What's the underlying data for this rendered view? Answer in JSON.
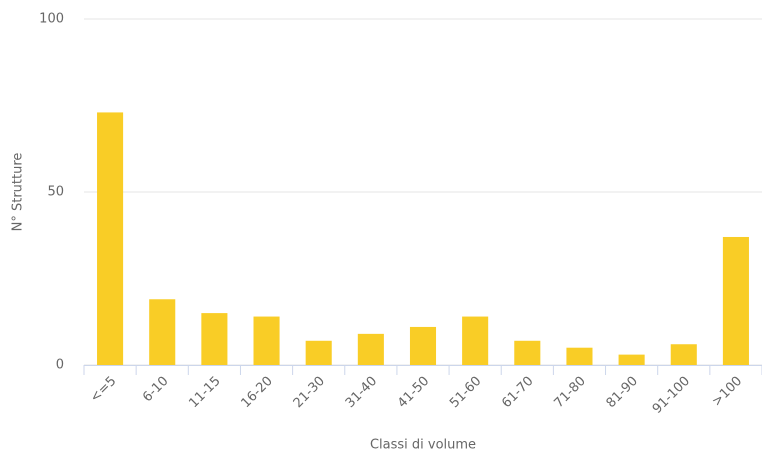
{
  "chart_data": {
    "type": "bar",
    "x_label": "Classi di volume",
    "y_label": "N° Strutture",
    "categories": [
      "<=5",
      "6-10",
      "11-15",
      "16-20",
      "21-30",
      "31-40",
      "41-50",
      "51-60",
      "61-70",
      "71-80",
      "81-90",
      "91-100",
      ">100"
    ],
    "values": [
      73,
      19,
      15,
      14,
      7,
      9,
      11,
      14,
      7,
      5,
      3,
      6,
      37
    ],
    "color": "#f9cd26",
    "ylim": [
      0,
      100
    ],
    "yticks": [
      0,
      50,
      100
    ],
    "grid": true
  }
}
